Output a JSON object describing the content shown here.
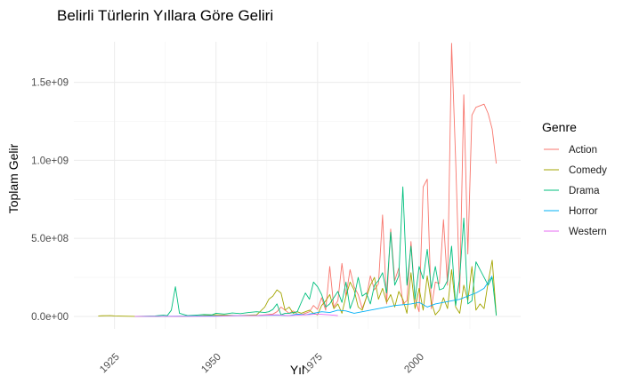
{
  "chart_data": {
    "type": "line",
    "title": "Belirli Türlerin Yıllara Göre Geliri",
    "xlabel": "Yıl",
    "ylabel": "Toplam Gelir",
    "xlim": [
      1915,
      2025
    ],
    "ylim": [
      -80000000,
      1760000000
    ],
    "x_ticks": [
      1925,
      1950,
      1975,
      2000
    ],
    "x_tick_labels": [
      "1925",
      "1950",
      "1975",
      "2000"
    ],
    "x_minor_ticks": [
      1937.5,
      1962.5,
      1987.5,
      2012.5
    ],
    "y_ticks": [
      0,
      500000000,
      1000000000,
      1500000000
    ],
    "y_tick_labels": [
      "0.0e+00",
      "5.0e+08",
      "1.0e+09",
      "1.5e+09"
    ],
    "y_minor_ticks": [
      250000000,
      750000000,
      1250000000
    ],
    "grid": true,
    "legend": {
      "title": "Genre",
      "placement": "right"
    },
    "series": [
      {
        "name": "Action",
        "color": "#F8766D",
        "x": [
          1960,
          1962,
          1964,
          1965,
          1966,
          1968,
          1969,
          1970,
          1971,
          1972,
          1973,
          1974,
          1975,
          1976,
          1977,
          1978,
          1979,
          1980,
          1981,
          1982,
          1983,
          1984,
          1985,
          1986,
          1987,
          1988,
          1989,
          1990,
          1991,
          1992,
          1993,
          1994,
          1995,
          1996,
          1997,
          1998,
          1999,
          2000,
          2001,
          2002,
          2003,
          2004,
          2005,
          2006,
          2007,
          2008,
          2009,
          2010,
          2011,
          2012,
          2013,
          2014,
          2015,
          2016,
          2017,
          2018,
          2019
        ],
        "y": [
          5000000,
          10000000,
          15000000,
          30000000,
          60000000,
          20000000,
          35000000,
          15000000,
          10000000,
          20000000,
          30000000,
          70000000,
          45000000,
          120000000,
          40000000,
          320000000,
          60000000,
          100000000,
          340000000,
          130000000,
          300000000,
          190000000,
          140000000,
          50000000,
          120000000,
          260000000,
          170000000,
          210000000,
          650000000,
          80000000,
          560000000,
          230000000,
          310000000,
          80000000,
          100000000,
          480000000,
          110000000,
          30000000,
          830000000,
          880000000,
          50000000,
          220000000,
          210000000,
          620000000,
          200000000,
          1750000000,
          1000000000,
          150000000,
          1420000000,
          400000000,
          1290000000,
          1340000000,
          1350000000,
          1360000000,
          1300000000,
          1200000000,
          980000000
        ]
      },
      {
        "name": "Comedy",
        "color": "#A3A500",
        "x": [
          1921,
          1922,
          1924,
          1925,
          1926,
          1930,
          1935,
          1940,
          1945,
          1950,
          1955,
          1960,
          1962,
          1963,
          1964,
          1965,
          1966,
          1967,
          1968,
          1969,
          1970,
          1971,
          1972,
          1973,
          1974,
          1975,
          1976,
          1977,
          1978,
          1979,
          1980,
          1981,
          1982,
          1983,
          1984,
          1985,
          1986,
          1987,
          1988,
          1989,
          1990,
          1991,
          1992,
          1993,
          1994,
          1995,
          1996,
          1997,
          1998,
          1999,
          2000,
          2001,
          2002,
          2003,
          2004,
          2005,
          2006,
          2007,
          2008,
          2009,
          2010,
          2011,
          2012,
          2013,
          2014,
          2015,
          2016,
          2017,
          2018,
          2019
        ],
        "y": [
          3000000,
          4000000,
          5000000,
          3000000,
          2000000,
          0,
          0,
          0,
          2000000,
          10000000,
          5000000,
          10000000,
          60000000,
          110000000,
          130000000,
          170000000,
          150000000,
          40000000,
          60000000,
          20000000,
          30000000,
          20000000,
          30000000,
          40000000,
          20000000,
          10000000,
          70000000,
          100000000,
          140000000,
          50000000,
          80000000,
          20000000,
          130000000,
          220000000,
          170000000,
          60000000,
          40000000,
          120000000,
          200000000,
          250000000,
          110000000,
          180000000,
          90000000,
          140000000,
          60000000,
          160000000,
          110000000,
          20000000,
          280000000,
          50000000,
          180000000,
          40000000,
          260000000,
          90000000,
          10000000,
          40000000,
          120000000,
          50000000,
          300000000,
          60000000,
          20000000,
          200000000,
          100000000,
          320000000,
          40000000,
          80000000,
          50000000,
          220000000,
          360000000,
          10000000
        ]
      },
      {
        "name": "Drama",
        "color": "#00BF7D",
        "x": [
          1930,
          1935,
          1937,
          1938,
          1939,
          1940,
          1941,
          1943,
          1945,
          1947,
          1949,
          1950,
          1952,
          1954,
          1956,
          1958,
          1960,
          1962,
          1963,
          1964,
          1965,
          1966,
          1967,
          1968,
          1970,
          1972,
          1973,
          1974,
          1975,
          1976,
          1977,
          1978,
          1979,
          1980,
          1981,
          1982,
          1983,
          1984,
          1985,
          1986,
          1987,
          1988,
          1989,
          1990,
          1991,
          1992,
          1993,
          1994,
          1995,
          1996,
          1997,
          1998,
          1999,
          2000,
          2001,
          2002,
          2003,
          2004,
          2005,
          2006,
          2007,
          2008,
          2009,
          2010,
          2011,
          2012,
          2013,
          2014,
          2015,
          2016,
          2017,
          2018,
          2019
        ],
        "y": [
          0,
          3000000,
          8000000,
          5000000,
          40000000,
          190000000,
          20000000,
          5000000,
          8000000,
          12000000,
          10000000,
          20000000,
          15000000,
          22000000,
          18000000,
          25000000,
          30000000,
          25000000,
          30000000,
          45000000,
          80000000,
          10000000,
          20000000,
          20000000,
          30000000,
          150000000,
          110000000,
          220000000,
          190000000,
          140000000,
          60000000,
          80000000,
          120000000,
          160000000,
          90000000,
          220000000,
          50000000,
          120000000,
          250000000,
          130000000,
          150000000,
          80000000,
          200000000,
          230000000,
          280000000,
          150000000,
          540000000,
          200000000,
          260000000,
          830000000,
          200000000,
          450000000,
          110000000,
          320000000,
          240000000,
          430000000,
          180000000,
          320000000,
          170000000,
          180000000,
          230000000,
          450000000,
          70000000,
          250000000,
          630000000,
          80000000,
          100000000,
          350000000,
          300000000,
          250000000,
          200000000,
          250000000,
          5000000
        ]
      },
      {
        "name": "Horror",
        "color": "#00B0F6",
        "x": [
          1932,
          1945,
          1958,
          1965,
          1968,
          1970,
          1972,
          1974,
          1976,
          1978,
          1980,
          1982,
          1984,
          1986,
          1988,
          1990,
          1992,
          1994,
          1996,
          1998,
          2000,
          2002,
          2004,
          2006,
          2008,
          2010,
          2012,
          2014,
          2016,
          2018
        ],
        "y": [
          0,
          2000000,
          5000000,
          8000000,
          5000000,
          15000000,
          10000000,
          20000000,
          30000000,
          25000000,
          40000000,
          35000000,
          20000000,
          30000000,
          40000000,
          50000000,
          60000000,
          70000000,
          75000000,
          80000000,
          90000000,
          60000000,
          80000000,
          90000000,
          100000000,
          110000000,
          130000000,
          150000000,
          180000000,
          260000000
        ]
      },
      {
        "name": "Western",
        "color": "#E76BF3",
        "x": [
          1930,
          1940,
          1950,
          1955,
          1960,
          1962,
          1965,
          1968,
          1970,
          1972,
          1975,
          1978,
          1980
        ],
        "y": [
          0,
          0,
          1000000,
          5000000,
          5000000,
          8000000,
          10000000,
          5000000,
          8000000,
          10000000,
          15000000,
          10000000,
          5000000
        ]
      }
    ]
  }
}
